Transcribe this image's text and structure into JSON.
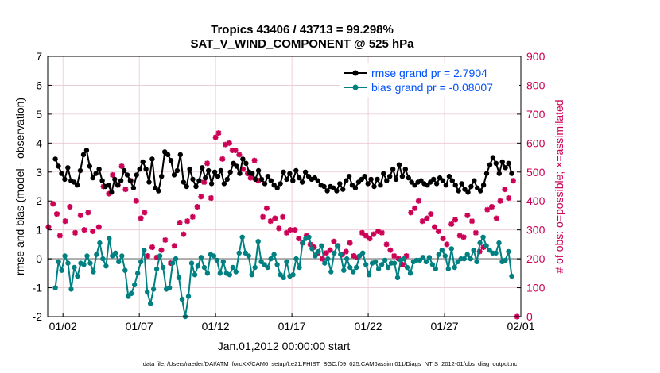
{
  "chart_data": {
    "type": "line",
    "title": "Tropics 43406 / 43713 = 99.298%",
    "subtitle": "SAT_V_WIND_COMPONENT @ 525 hPa",
    "xlabel": "Jan.01,2012 00:00:00 start",
    "ylabel": "rmse and bias (model - observation)",
    "ylabel_right": "# of obs: o=possible; ×=assimilated",
    "footnote": "data file: /Users/raeder/DAI/ATM_forcXX/CAM6_setup/f.e21.FHIST_BGC.f09_025.CAM6assim.011/Diags_NTrS_2012-01/obs_diag_output.nc",
    "xlim": [
      0.5,
      31.5
    ],
    "ylim": [
      -2,
      7
    ],
    "ylim_right": [
      0,
      900
    ],
    "x_ticks": [
      1.5,
      6.5,
      11.5,
      16.5,
      21.5,
      26.5,
      31.5
    ],
    "x_tick_labels": [
      "01/02",
      "01/07",
      "01/12",
      "01/17",
      "01/22",
      "01/27",
      "02/01"
    ],
    "y_ticks": [
      -2,
      -1,
      0,
      1,
      2,
      3,
      4,
      5,
      6,
      7
    ],
    "y_tick_labels": [
      "-2",
      "-1",
      "0",
      "1",
      "2",
      "3",
      "4",
      "5",
      "6",
      "7"
    ],
    "y_right_ticks": [
      0,
      100,
      200,
      300,
      400,
      500,
      600,
      700,
      800,
      900
    ],
    "y_right_tick_labels": [
      "0",
      "100",
      "200",
      "300",
      "400",
      "500",
      "600",
      "700",
      "800",
      "900"
    ],
    "grid": true,
    "legend": {
      "position": "top-right"
    },
    "colors": {
      "rmse": "#000000",
      "bias": "#008080",
      "obs": "#cc0055",
      "zero": "#aaaaaa",
      "grid": "#e8c8d0"
    },
    "series": [
      {
        "name": "rmse grand pr = 2.7904",
        "y": [
          3.45,
          3.2,
          2.95,
          2.75,
          3.15,
          2.7,
          2.65,
          2.55,
          3.05,
          3.6,
          3.75,
          3.2,
          2.8,
          2.95,
          3.1,
          2.7,
          2.5,
          2.55,
          2.3,
          2.75,
          2.55,
          2.7,
          3.05,
          2.9,
          2.7,
          2.45,
          2.9,
          3.1,
          3.35,
          3.1,
          2.65,
          3.45,
          2.45,
          2.35,
          2.85,
          3.7,
          3.6,
          3.4,
          2.9,
          3.05,
          3.6,
          2.65,
          2.5,
          3.1,
          2.75,
          2.5,
          2.7,
          3.15,
          2.8,
          3.05,
          2.6,
          3.0,
          2.85,
          3.05,
          2.6,
          2.75,
          3.0,
          3.3,
          3.2,
          2.95,
          3.45,
          3.3,
          3.0,
          2.95,
          2.75,
          3.05,
          2.75,
          2.6,
          2.85,
          2.7,
          2.55,
          2.45,
          2.6,
          3.0,
          2.75,
          2.95,
          2.7,
          3.05,
          2.8,
          2.65,
          3.0,
          2.85,
          2.75,
          2.8,
          2.7,
          2.55,
          2.5,
          2.35,
          2.5,
          2.45,
          2.35,
          2.6,
          2.4,
          2.7,
          2.85,
          2.55,
          2.45,
          2.65,
          2.75,
          2.85,
          2.6,
          2.75,
          2.5,
          2.75,
          2.55,
          2.95,
          2.7,
          2.85,
          3.1,
          2.75,
          3.25,
          2.85,
          3.1,
          2.8,
          2.65,
          2.55,
          2.65,
          2.7,
          2.6,
          2.55,
          2.65,
          2.75,
          2.6,
          2.8,
          2.7,
          2.55,
          2.85,
          2.7,
          2.55,
          2.35,
          2.6,
          2.4,
          2.3,
          2.5,
          2.7,
          2.45,
          2.35,
          2.55,
          2.95,
          3.25,
          3.5,
          3.3,
          2.95,
          3.35,
          3.15,
          3.3,
          2.95
        ]
      },
      {
        "name": "bias grand pr = -0.08007",
        "y": [
          -1.0,
          -0.1,
          -0.4,
          0.1,
          -0.15,
          -1.05,
          -0.3,
          -0.6,
          -0.15,
          -0.2,
          0.1,
          -0.15,
          -0.45,
          0.15,
          0.55,
          0.0,
          -0.25,
          0.7,
          0.1,
          0.2,
          -0.1,
          0.1,
          -0.4,
          -1.3,
          -1.2,
          -0.9,
          -0.5,
          -0.1,
          0.3,
          -1.15,
          -1.55,
          -1.05,
          -0.35,
          0.1,
          -0.3,
          -1.05,
          -1.0,
          -0.15,
          0.0,
          -0.65,
          -1.4,
          -2.0,
          -1.3,
          -0.15,
          -0.55,
          -0.25,
          0.05,
          -0.3,
          -0.5,
          0.15,
          0.1,
          -0.05,
          -0.5,
          -0.1,
          -0.5,
          -0.55,
          -0.3,
          -0.45,
          0.2,
          0.75,
          0.2,
          0.1,
          -0.55,
          -0.3,
          0.6,
          -0.1,
          -0.2,
          -0.3,
          0.0,
          0.15,
          -0.2,
          -0.55,
          -0.65,
          -0.1,
          -0.6,
          -0.55,
          0.0,
          -0.3,
          0.55,
          0.7,
          0.75,
          0.35,
          0.1,
          0.25,
          0.45,
          -0.15,
          0.0,
          -0.45,
          0.2,
          0.45,
          0.15,
          -0.4,
          0.0,
          -0.3,
          -0.45,
          -0.3,
          0.1,
          0.2,
          -0.2,
          -0.55,
          -0.15,
          -0.1,
          -0.35,
          -0.2,
          -0.05,
          -0.3,
          -0.15,
          -0.15,
          -0.65,
          -0.05,
          0.0,
          -0.3,
          -0.5,
          -0.1,
          -0.05,
          -0.05,
          0.05,
          -0.1,
          0.05,
          -0.2,
          -0.35,
          0.15,
          0.3,
          0.1,
          -0.35,
          0.35,
          -0.3,
          -0.1,
          0.0,
          0.0,
          0.15,
          0.0,
          0.3,
          -0.1,
          0.55,
          0.75,
          0.45,
          0.3,
          0.2,
          0.2,
          0.55,
          -0.1,
          -0.05,
          0.25,
          -0.6
        ]
      }
    ],
    "obs_possible": [
      {
        "x": 0.55,
        "y": 310
      },
      {
        "x": 0.85,
        "y": 390
      },
      {
        "x": 1.1,
        "y": 355
      },
      {
        "x": 1.3,
        "y": 280
      },
      {
        "x": 1.65,
        "y": 330
      },
      {
        "x": 1.95,
        "y": 380
      },
      {
        "x": 2.3,
        "y": 290
      },
      {
        "x": 2.65,
        "y": 350
      },
      {
        "x": 2.9,
        "y": 300
      },
      {
        "x": 3.15,
        "y": 360
      },
      {
        "x": 3.45,
        "y": 295
      },
      {
        "x": 3.85,
        "y": 310
      },
      {
        "x": 4.15,
        "y": 450
      },
      {
        "x": 4.5,
        "y": 425
      },
      {
        "x": 4.75,
        "y": 490
      },
      {
        "x": 5.1,
        "y": 455
      },
      {
        "x": 5.35,
        "y": 520
      },
      {
        "x": 5.6,
        "y": 440
      },
      {
        "x": 5.95,
        "y": 470
      },
      {
        "x": 6.3,
        "y": 400
      },
      {
        "x": 6.6,
        "y": 340
      },
      {
        "x": 6.85,
        "y": 360
      },
      {
        "x": 7.05,
        "y": 210
      },
      {
        "x": 7.35,
        "y": 240
      },
      {
        "x": 7.65,
        "y": 205
      },
      {
        "x": 7.95,
        "y": 230
      },
      {
        "x": 8.2,
        "y": 265
      },
      {
        "x": 8.55,
        "y": 185
      },
      {
        "x": 8.8,
        "y": 245
      },
      {
        "x": 9.15,
        "y": 325
      },
      {
        "x": 9.4,
        "y": 285
      },
      {
        "x": 9.65,
        "y": 330
      },
      {
        "x": 10.0,
        "y": 345
      },
      {
        "x": 10.3,
        "y": 380
      },
      {
        "x": 10.55,
        "y": 415
      },
      {
        "x": 10.75,
        "y": 465
      },
      {
        "x": 10.95,
        "y": 530
      },
      {
        "x": 11.2,
        "y": 410
      },
      {
        "x": 11.5,
        "y": 620
      },
      {
        "x": 11.7,
        "y": 635
      },
      {
        "x": 11.95,
        "y": 545
      },
      {
        "x": 12.15,
        "y": 595
      },
      {
        "x": 12.4,
        "y": 600
      },
      {
        "x": 12.6,
        "y": 575
      },
      {
        "x": 12.8,
        "y": 575
      },
      {
        "x": 13.05,
        "y": 560
      },
      {
        "x": 13.3,
        "y": 510
      },
      {
        "x": 13.6,
        "y": 495
      },
      {
        "x": 13.8,
        "y": 480
      },
      {
        "x": 14.05,
        "y": 540
      },
      {
        "x": 14.3,
        "y": 470
      },
      {
        "x": 14.6,
        "y": 345
      },
      {
        "x": 14.85,
        "y": 375
      },
      {
        "x": 15.1,
        "y": 330
      },
      {
        "x": 15.4,
        "y": 340
      },
      {
        "x": 15.65,
        "y": 305
      },
      {
        "x": 15.9,
        "y": 345
      },
      {
        "x": 16.15,
        "y": 290
      },
      {
        "x": 16.4,
        "y": 300
      },
      {
        "x": 16.7,
        "y": 300
      },
      {
        "x": 16.95,
        "y": 270
      },
      {
        "x": 17.2,
        "y": 255
      },
      {
        "x": 17.45,
        "y": 280
      },
      {
        "x": 17.7,
        "y": 250
      },
      {
        "x": 17.95,
        "y": 240
      },
      {
        "x": 18.2,
        "y": 220
      },
      {
        "x": 18.5,
        "y": 200
      },
      {
        "x": 18.75,
        "y": 220
      },
      {
        "x": 19.0,
        "y": 230
      },
      {
        "x": 19.25,
        "y": 260
      },
      {
        "x": 19.5,
        "y": 245
      },
      {
        "x": 19.8,
        "y": 215
      },
      {
        "x": 20.05,
        "y": 225
      },
      {
        "x": 20.3,
        "y": 255
      },
      {
        "x": 20.55,
        "y": 210
      },
      {
        "x": 20.8,
        "y": 205
      },
      {
        "x": 21.1,
        "y": 290
      },
      {
        "x": 21.35,
        "y": 280
      },
      {
        "x": 21.6,
        "y": 270
      },
      {
        "x": 21.85,
        "y": 285
      },
      {
        "x": 22.15,
        "y": 295
      },
      {
        "x": 22.4,
        "y": 290
      },
      {
        "x": 22.7,
        "y": 250
      },
      {
        "x": 22.95,
        "y": 230
      },
      {
        "x": 23.2,
        "y": 210
      },
      {
        "x": 23.5,
        "y": 200
      },
      {
        "x": 23.75,
        "y": 180
      },
      {
        "x": 24.0,
        "y": 210
      },
      {
        "x": 24.3,
        "y": 360
      },
      {
        "x": 24.55,
        "y": 375
      },
      {
        "x": 24.8,
        "y": 400
      },
      {
        "x": 25.05,
        "y": 330
      },
      {
        "x": 25.35,
        "y": 340
      },
      {
        "x": 25.6,
        "y": 355
      },
      {
        "x": 25.85,
        "y": 310
      },
      {
        "x": 26.1,
        "y": 295
      },
      {
        "x": 26.4,
        "y": 270
      },
      {
        "x": 26.65,
        "y": 250
      },
      {
        "x": 26.95,
        "y": 320
      },
      {
        "x": 27.2,
        "y": 335
      },
      {
        "x": 27.5,
        "y": 280
      },
      {
        "x": 27.75,
        "y": 275
      },
      {
        "x": 28.0,
        "y": 350
      },
      {
        "x": 28.3,
        "y": 330
      },
      {
        "x": 28.55,
        "y": 290
      },
      {
        "x": 28.8,
        "y": 225
      },
      {
        "x": 29.05,
        "y": 240
      },
      {
        "x": 29.3,
        "y": 370
      },
      {
        "x": 29.6,
        "y": 380
      },
      {
        "x": 29.9,
        "y": 340
      },
      {
        "x": 30.15,
        "y": 400
      },
      {
        "x": 30.45,
        "y": 440
      },
      {
        "x": 30.7,
        "y": 410
      },
      {
        "x": 31.0,
        "y": 470
      },
      {
        "x": 31.25,
        "y": 0
      }
    ]
  }
}
